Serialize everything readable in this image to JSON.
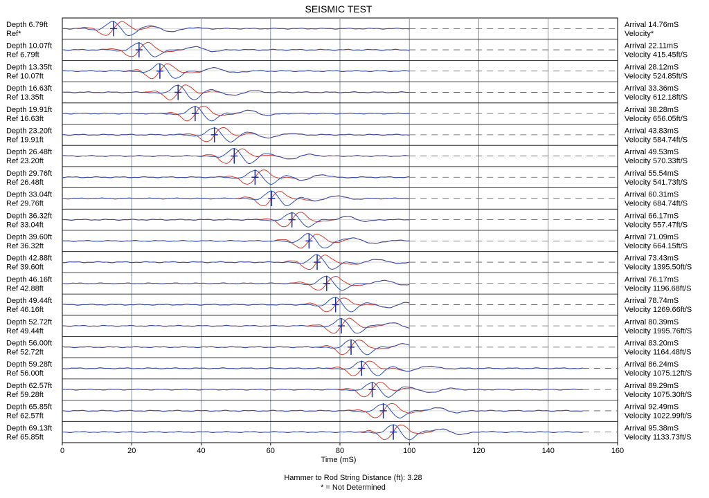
{
  "chart_data": {
    "type": "line",
    "title": "SEISMIC TEST",
    "xlabel": "Time (mS)",
    "xlim": [
      0,
      160
    ],
    "xticks": [
      "0",
      "20",
      "40",
      "60",
      "80",
      "100",
      "120",
      "140",
      "160"
    ],
    "data_end_ms": 100,
    "long_trace_end_ms": 150,
    "grid": true,
    "series_colors": {
      "channel_a": "#d23a2a",
      "channel_b": "#2c4fb6",
      "marker": "#1a2a9a"
    },
    "traces": [
      {
        "left1": "Depth 6.79ft",
        "left2": "Ref*",
        "right1": "Arrival 14.76mS",
        "right2": "Velocity*",
        "arrival_ms": 14.76
      },
      {
        "left1": "Depth 10.07ft",
        "left2": "Ref 6.79ft",
        "right1": "Arrival 22.11mS",
        "right2": "Velocity 415.45ft/S",
        "arrival_ms": 22.11
      },
      {
        "left1": "Depth 13.35ft",
        "left2": "Ref 10.07ft",
        "right1": "Arrival 28.12mS",
        "right2": "Velocity 524.85ft/S",
        "arrival_ms": 28.12
      },
      {
        "left1": "Depth 16.63ft",
        "left2": "Ref 13.35ft",
        "right1": "Arrival 33.36mS",
        "right2": "Velocity 612.18ft/S",
        "arrival_ms": 33.36
      },
      {
        "left1": "Depth 19.91ft",
        "left2": "Ref 16.63ft",
        "right1": "Arrival 38.28mS",
        "right2": "Velocity 656.05ft/S",
        "arrival_ms": 38.28
      },
      {
        "left1": "Depth 23.20ft",
        "left2": "Ref 19.91ft",
        "right1": "Arrival 43.83mS",
        "right2": "Velocity 584.74ft/S",
        "arrival_ms": 43.83
      },
      {
        "left1": "Depth 26.48ft",
        "left2": "Ref 23.20ft",
        "right1": "Arrival 49.53mS",
        "right2": "Velocity 570.33ft/S",
        "arrival_ms": 49.53
      },
      {
        "left1": "Depth 29.76ft",
        "left2": "Ref 26.48ft",
        "right1": "Arrival 55.54mS",
        "right2": "Velocity 541.73ft/S",
        "arrival_ms": 55.54
      },
      {
        "left1": "Depth 33.04ft",
        "left2": "Ref 29.76ft",
        "right1": "Arrival 60.31mS",
        "right2": "Velocity 684.74ft/S",
        "arrival_ms": 60.31
      },
      {
        "left1": "Depth 36.32ft",
        "left2": "Ref 33.04ft",
        "right1": "Arrival 66.17mS",
        "right2": "Velocity 557.47ft/S",
        "arrival_ms": 66.17
      },
      {
        "left1": "Depth 39.60ft",
        "left2": "Ref 36.32ft",
        "right1": "Arrival 71.09mS",
        "right2": "Velocity 664.15ft/S",
        "arrival_ms": 71.09
      },
      {
        "left1": "Depth 42.88ft",
        "left2": "Ref 39.60ft",
        "right1": "Arrival 73.43mS",
        "right2": "Velocity 1395.50ft/S",
        "arrival_ms": 73.43
      },
      {
        "left1": "Depth 46.16ft",
        "left2": "Ref 42.88ft",
        "right1": "Arrival 76.17mS",
        "right2": "Velocity 1196.68ft/S",
        "arrival_ms": 76.17
      },
      {
        "left1": "Depth 49.44ft",
        "left2": "Ref 46.16ft",
        "right1": "Arrival 78.74mS",
        "right2": "Velocity 1269.66ft/S",
        "arrival_ms": 78.74
      },
      {
        "left1": "Depth 52.72ft",
        "left2": "Ref 49.44ft",
        "right1": "Arrival 80.39mS",
        "right2": "Velocity 1995.76ft/S",
        "arrival_ms": 80.39
      },
      {
        "left1": "Depth 56.00ft",
        "left2": "Ref 52.72ft",
        "right1": "Arrival 83.20mS",
        "right2": "Velocity 1164.48ft/S",
        "arrival_ms": 83.2
      },
      {
        "left1": "Depth 59.28ft",
        "left2": "Ref 56.00ft",
        "right1": "Arrival 86.24mS",
        "right2": "Velocity 1075.12ft/S",
        "arrival_ms": 86.24
      },
      {
        "left1": "Depth 62.57ft",
        "left2": "Ref 59.28ft",
        "right1": "Arrival 89.29mS",
        "right2": "Velocity 1075.30ft/S",
        "arrival_ms": 89.29
      },
      {
        "left1": "Depth 65.85ft",
        "left2": "Ref 62.57ft",
        "right1": "Arrival 92.49mS",
        "right2": "Velocity 1022.99ft/S",
        "arrival_ms": 92.49
      },
      {
        "left1": "Depth 69.13ft",
        "left2": "Ref 65.85ft",
        "right1": "Arrival 95.38mS",
        "right2": "Velocity 1133.73ft/S",
        "arrival_ms": 95.38
      }
    ]
  },
  "footer": {
    "line1": "Hammer to Rod String Distance (ft): 3.28",
    "line2": "* = Not Determined"
  }
}
